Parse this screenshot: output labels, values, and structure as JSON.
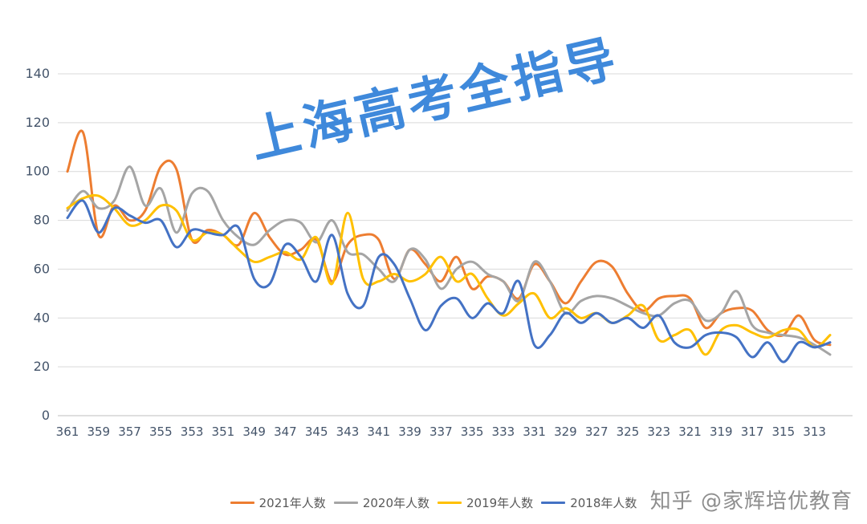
{
  "watermark": "上海高考全指导",
  "credit": "知乎 @家辉培优教育",
  "colors": {
    "grid": "#D9D9D9",
    "axis_line": "#BFBFBF",
    "axis_text": "#44546A",
    "watermark": "#2F7FD8",
    "credit": "#8E8E8E",
    "legend_text": "#595959",
    "background": "#FFFFFF"
  },
  "chart_data": {
    "type": "line",
    "title": "",
    "xlabel": "",
    "ylabel": "",
    "ylim": [
      0,
      140
    ],
    "grid": true,
    "legend_position": "bottom",
    "y_ticks": [
      0,
      20,
      40,
      60,
      80,
      100,
      120,
      140
    ],
    "x": [
      361,
      360,
      359,
      358,
      357,
      356,
      355,
      354,
      353,
      352,
      351,
      350,
      349,
      348,
      347,
      346,
      345,
      344,
      343,
      342,
      341,
      340,
      339,
      338,
      337,
      336,
      335,
      334,
      333,
      332,
      331,
      330,
      329,
      328,
      327,
      326,
      325,
      324,
      323,
      322,
      321,
      320,
      319,
      318,
      317,
      316,
      315,
      314,
      313,
      312
    ],
    "x_tick_labels": [
      "361",
      "359",
      "357",
      "355",
      "353",
      "351",
      "349",
      "347",
      "345",
      "343",
      "341",
      "339",
      "337",
      "335",
      "333",
      "331",
      "329",
      "327",
      "325",
      "323",
      "321",
      "319",
      "317",
      "315",
      "313"
    ],
    "series": [
      {
        "name": "2021年人数",
        "color": "#ED7D31",
        "values": [
          100,
          116,
          74,
          86,
          80,
          84,
          102,
          101,
          72,
          76,
          74,
          70,
          83,
          73,
          66,
          68,
          72,
          55,
          70,
          74,
          72,
          56,
          68,
          62,
          55,
          65,
          52,
          57,
          55,
          48,
          62,
          55,
          46,
          55,
          63,
          61,
          50,
          43,
          48,
          49,
          48,
          36,
          42,
          44,
          43,
          35,
          33,
          41,
          31,
          29
        ]
      },
      {
        "name": "2020年人数",
        "color": "#A5A5A5",
        "values": [
          84,
          92,
          85,
          88,
          102,
          86,
          93,
          75,
          91,
          92,
          80,
          73,
          70,
          76,
          80,
          79,
          71,
          80,
          67,
          66,
          60,
          55,
          68,
          64,
          52,
          60,
          63,
          58,
          55,
          47,
          63,
          55,
          42,
          47,
          49,
          48,
          45,
          42,
          41,
          46,
          47,
          39,
          42,
          51,
          37,
          34,
          33,
          32,
          29,
          25
        ]
      },
      {
        "name": "2019年人数",
        "color": "#FFC000",
        "values": [
          85,
          89,
          90,
          85,
          78,
          80,
          86,
          84,
          72,
          75,
          74,
          68,
          63,
          65,
          67,
          64,
          73,
          54,
          83,
          56,
          55,
          58,
          55,
          58,
          65,
          55,
          58,
          48,
          41,
          46,
          50,
          40,
          44,
          40,
          42,
          38,
          41,
          45,
          31,
          33,
          35,
          25,
          35,
          37,
          34,
          32,
          35,
          35,
          28,
          33
        ]
      },
      {
        "name": "2018年人数",
        "color": "#4472C4",
        "values": [
          81,
          88,
          75,
          85,
          82,
          79,
          80,
          69,
          76,
          75,
          74,
          77,
          56,
          54,
          70,
          65,
          55,
          74,
          50,
          45,
          65,
          62,
          48,
          35,
          45,
          48,
          40,
          46,
          42,
          55,
          29,
          33,
          42,
          38,
          42,
          38,
          40,
          36,
          41,
          30,
          28,
          33,
          34,
          32,
          24,
          30,
          22,
          30,
          28,
          30
        ]
      }
    ]
  }
}
